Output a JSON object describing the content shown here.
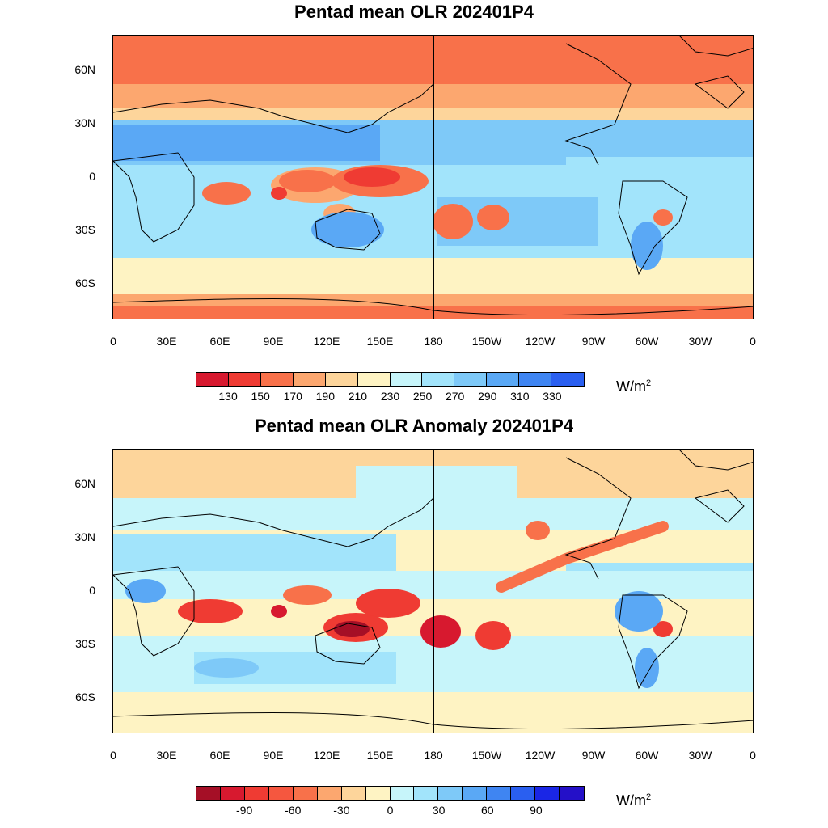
{
  "panels": [
    {
      "title": "Pentad mean OLR 202401P4",
      "units": "W/m",
      "units_sup": "2",
      "colorbar": {
        "colors": [
          "#d7192f",
          "#ef3b33",
          "#f8714a",
          "#fca76f",
          "#fdd59b",
          "#fef3c3",
          "#c7f5fa",
          "#a2e4fb",
          "#7ec9f8",
          "#5aa8f5",
          "#3f85f2",
          "#2a5ff0"
        ],
        "labels": [
          "130",
          "150",
          "170",
          "190",
          "210",
          "230",
          "250",
          "270",
          "290",
          "310",
          "330"
        ]
      }
    },
    {
      "title": "Pentad mean OLR Anomaly 202401P4",
      "units": "W/m",
      "units_sup": "2",
      "colorbar": {
        "colors": [
          "#a50f26",
          "#d7192f",
          "#ef3b33",
          "#f5573f",
          "#f8714a",
          "#fca76f",
          "#fdd59b",
          "#fef3c3",
          "#c7f5fa",
          "#a2e4fb",
          "#7ec9f8",
          "#5aa8f5",
          "#3f85f2",
          "#2a5ff0",
          "#1a26e6",
          "#2410c8"
        ],
        "labels": [
          "-90",
          "-60",
          "-30",
          "0",
          "30",
          "60",
          "90"
        ]
      }
    }
  ],
  "lon_labels": [
    "0",
    "30E",
    "60E",
    "90E",
    "120E",
    "150E",
    "180",
    "150W",
    "120W",
    "90W",
    "60W",
    "30W",
    "0"
  ],
  "lat_labels": [
    "60N",
    "30N",
    "0",
    "30S",
    "60S"
  ],
  "colors": {
    "ocean_cool": "#a2e4fb",
    "warm": "#fdd59b",
    "strong_neg": "#d7192f"
  }
}
